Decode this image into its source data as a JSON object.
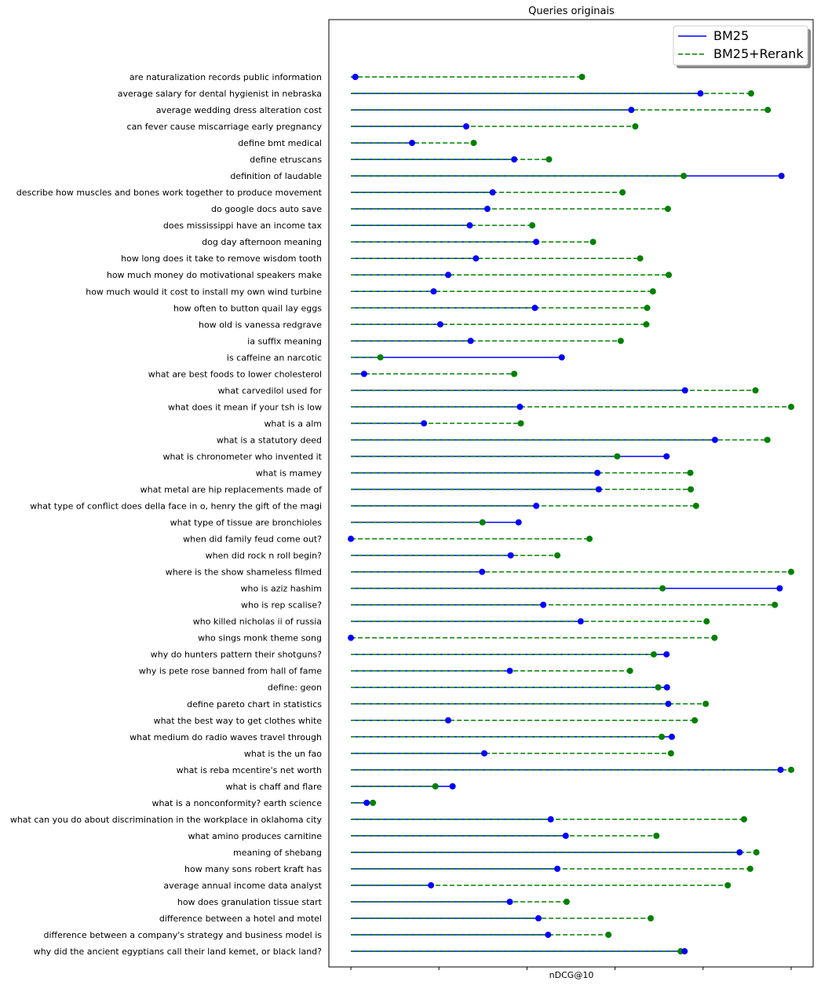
{
  "chart_data": {
    "type": "dumbbell",
    "title": "Queries originais",
    "xlabel": "nDCG@10",
    "xlim": [
      -0.05,
      1.05
    ],
    "legend_position": "top-right",
    "colors": {
      "bm25": "#0000ff",
      "rerank": "#008000"
    },
    "series": [
      {
        "name": "BM25",
        "line": "solid"
      },
      {
        "name": "BM25+Rerank",
        "line": "dashed"
      }
    ],
    "categories": [
      "are naturalization records public information",
      "average salary for dental hygienist in nebraska",
      "average wedding dress alteration cost",
      "can fever cause miscarriage early pregnancy",
      "define bmt medical",
      "define etruscans",
      "definition of laudable",
      "describe how muscles and bones work together to produce movement",
      "do google docs auto save",
      "does mississippi have an income tax",
      "dog day afternoon meaning",
      "how long does it take to remove wisdom tooth",
      "how much money do motivational speakers make",
      "how much would it cost to install my own wind turbine",
      "how often to button quail lay eggs",
      "how old is vanessa redgrave",
      "ia suffix meaning",
      "is caffeine an narcotic",
      "what are best foods to lower cholesterol",
      "what carvedilol used for",
      "what does it mean if your tsh is low",
      "what is a alm",
      "what is a statutory deed",
      "what is chronometer who invented it",
      "what is mamey",
      "what metal are hip replacements made of",
      "what type of conflict does della face in o, henry the gift of the magi",
      "what type of tissue are bronchioles",
      "when did family feud come out?",
      "when did rock n roll begin?",
      "where is the show shameless filmed",
      "who is aziz hashim",
      "who is rep scalise?",
      "who killed nicholas ii of russia",
      "who sings monk theme song",
      "why do hunters pattern their shotguns?",
      "why is pete rose banned from hall of fame",
      "define: geon",
      "define pareto chart in statistics",
      "what the best way to get clothes white",
      "what medium do radio waves travel through",
      "what is the un fao",
      "what is reba mcentire's net worth",
      "what is chaff and flare",
      "what is a nonconformity? earth science",
      "what can you do about discrimination in the workplace in oklahoma city",
      "what amino produces carnitine",
      "meaning of shebang",
      "how many sons robert kraft has",
      "average annual income data analyst",
      "how does granulation tissue start",
      "difference between a hotel and motel",
      "difference between a company's strategy and business model is",
      "why did the ancient egyptians call their land kemet, or black land?"
    ],
    "bm25": [
      0.01,
      0.794,
      0.637,
      0.262,
      0.139,
      0.371,
      0.978,
      0.322,
      0.31,
      0.27,
      0.421,
      0.284,
      0.221,
      0.188,
      0.418,
      0.203,
      0.272,
      0.479,
      0.03,
      0.759,
      0.384,
      0.166,
      0.827,
      0.717,
      0.56,
      0.563,
      0.421,
      0.381,
      0.0,
      0.363,
      0.298,
      0.974,
      0.437,
      0.522,
      0.0,
      0.717,
      0.361,
      0.718,
      0.721,
      0.221,
      0.729,
      0.303,
      0.976,
      0.231,
      0.036,
      0.454,
      0.488,
      0.883,
      0.469,
      0.182,
      0.361,
      0.426,
      0.448,
      0.758
    ],
    "rerank": [
      0.525,
      0.909,
      0.947,
      0.646,
      0.279,
      0.45,
      0.756,
      0.617,
      0.72,
      0.412,
      0.55,
      0.657,
      0.722,
      0.686,
      0.673,
      0.671,
      0.613,
      0.067,
      0.371,
      0.919,
      1.0,
      0.386,
      0.946,
      0.605,
      0.771,
      0.772,
      0.784,
      0.299,
      0.542,
      0.469,
      1.0,
      0.708,
      0.963,
      0.808,
      0.826,
      0.688,
      0.634,
      0.698,
      0.806,
      0.781,
      0.706,
      0.727,
      1.0,
      0.192,
      0.05,
      0.893,
      0.694,
      0.921,
      0.907,
      0.856,
      0.49,
      0.681,
      0.585,
      0.749
    ]
  }
}
